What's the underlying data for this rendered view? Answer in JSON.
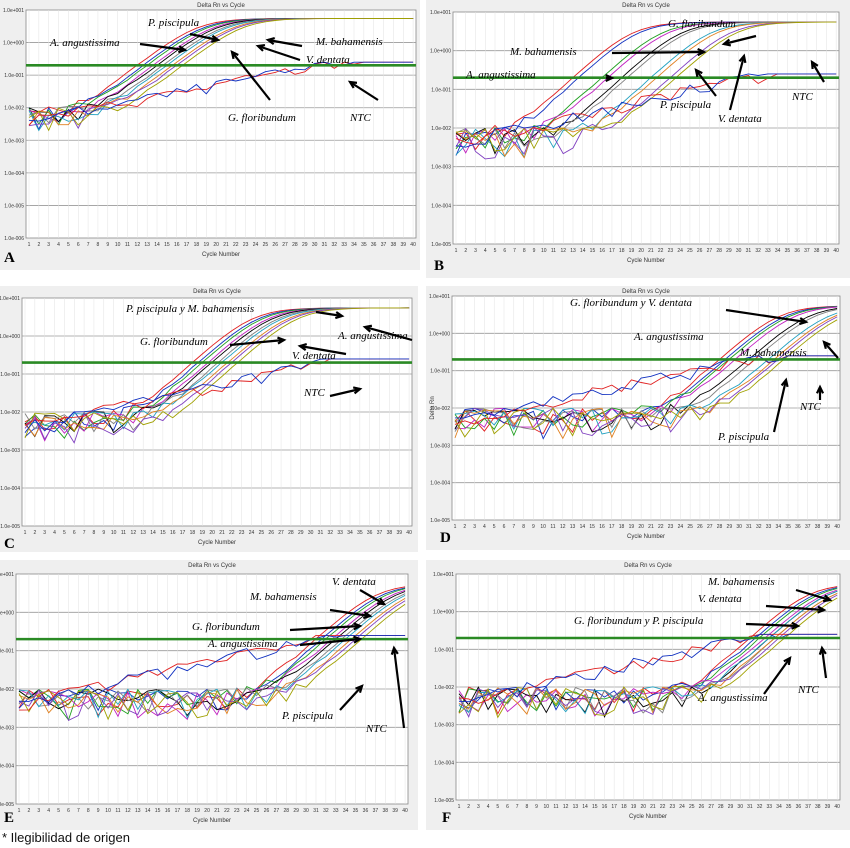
{
  "footnote": "* Ilegibilidad de origen",
  "colors": {
    "threshold": "#2a8a24",
    "panel_bg": "#efefef",
    "curves": [
      "#e02020",
      "#1030c0",
      "#20a020",
      "#c020c0",
      "#000000",
      "#808080",
      "#20a0c0",
      "#e08020",
      "#8040c0",
      "#a0a000"
    ]
  },
  "chart_data": [
    {
      "type": "line",
      "panel": "A",
      "title": "Delta Rn vs Cycle",
      "xlabel": "Cycle Number",
      "ylabel": "",
      "y_scale": "log",
      "yticks": [
        "1.0e+001",
        "1.0e+000",
        "1.0e-001",
        "1.0e-002",
        "1.0e-003",
        "1.0e-004",
        "1.0e-005",
        "1.0e-006"
      ],
      "ylim": [
        1e-06,
        10
      ],
      "x": [
        1,
        40
      ],
      "threshold": 0.2,
      "series": [
        {
          "name": "A. angustissima",
          "ct": 15
        },
        {
          "name": "P. piscipula",
          "ct": 16
        },
        {
          "name": "G. floribundum",
          "ct": 17
        },
        {
          "name": "M. bahamensis",
          "ct": 18
        },
        {
          "name": "V. dentata",
          "ct": 19
        },
        {
          "name": "NTC",
          "ct": null
        }
      ],
      "annotations": [
        "A. angustissima",
        "P. piscipula",
        "M. bahamensis",
        "V. dentata",
        "G. floribundum",
        "NTC"
      ]
    },
    {
      "type": "line",
      "panel": "B",
      "title": "Delta Rn vs Cycle",
      "xlabel": "Cycle Number",
      "ylabel": "",
      "y_scale": "log",
      "yticks": [
        "1.0e+001",
        "1.0e+000",
        "1.0e-001",
        "1.0e-002",
        "1.0e-003",
        "1.0e-004",
        "1.0e-005"
      ],
      "ylim": [
        1e-05,
        10
      ],
      "x": [
        1,
        40
      ],
      "threshold": 0.2,
      "series": [
        {
          "name": "A. angustissima",
          "ct": 16
        },
        {
          "name": "M. bahamensis",
          "ct": 19
        },
        {
          "name": "G. floribundum",
          "ct": 21
        },
        {
          "name": "P. piscipula",
          "ct": 24
        },
        {
          "name": "V. dentata",
          "ct": 26
        },
        {
          "name": "NTC",
          "ct": null
        }
      ],
      "annotations": [
        "G. floribundum",
        "M. bahamensis",
        "A. angustissima",
        "P. piscipula",
        "V. dentata",
        "NTC"
      ]
    },
    {
      "type": "line",
      "panel": "C",
      "title": "Delta Rn vs Cycle",
      "xlabel": "Cycle Number",
      "ylabel": "",
      "y_scale": "log",
      "yticks": [
        "1.0e+001",
        "1.0e+000",
        "1.0e-001",
        "1.0e-002",
        "1.0e-003",
        "1.0e-004",
        "1.0e-005"
      ],
      "ylim": [
        1e-05,
        10
      ],
      "x": [
        1,
        40
      ],
      "threshold": 0.2,
      "series": [
        {
          "name": "P. piscipula",
          "ct": 21
        },
        {
          "name": "M. bahamensis",
          "ct": 22
        },
        {
          "name": "G. floribundum",
          "ct": 23
        },
        {
          "name": "V. dentata",
          "ct": 24
        },
        {
          "name": "A. angustissima",
          "ct": 25
        },
        {
          "name": "NTC",
          "ct": null
        }
      ],
      "annotations": [
        "P. piscipula y M. bahamensis",
        "G. floribundum",
        "A. angustissima",
        "V. dentata",
        "NTC"
      ]
    },
    {
      "type": "line",
      "panel": "D",
      "title": "Delta Rn vs Cycle",
      "xlabel": "Cycle Number",
      "ylabel": "Delta Rn",
      "y_scale": "log",
      "yticks": [
        "1.0e+001",
        "1.0e+000",
        "1.0e-001",
        "1.0e-002",
        "1.0e-003",
        "1.0e-004",
        "1.0e-005"
      ],
      "ylim": [
        1e-05,
        10
      ],
      "x": [
        1,
        40
      ],
      "threshold": 0.2,
      "series": [
        {
          "name": "G. floribundum",
          "ct": 31
        },
        {
          "name": "V. dentata",
          "ct": 32
        },
        {
          "name": "A. angustissima",
          "ct": 34
        },
        {
          "name": "M. bahamensis",
          "ct": 36
        },
        {
          "name": "P. piscipula",
          "ct": 37
        },
        {
          "name": "NTC",
          "ct": null
        }
      ],
      "annotations": [
        "G. floribundum y V. dentata",
        "A. angustissima",
        "M. bahamensis",
        "NTC",
        "P. piscipula"
      ]
    },
    {
      "type": "line",
      "panel": "E",
      "title": "Delta Rn vs Cycle",
      "xlabel": "Cycle Number",
      "ylabel": "",
      "y_scale": "log",
      "yticks": [
        "1.0e+001",
        "1.0e+000",
        "1.0e-001",
        "1.0e-002",
        "1.0e-003",
        "1.0e-004",
        "1.0e-005"
      ],
      "ylim": [
        1e-05,
        10
      ],
      "x": [
        1,
        40
      ],
      "threshold": 0.2,
      "series": [
        {
          "name": "V. dentata",
          "ct": 34
        },
        {
          "name": "M. bahamensis",
          "ct": 35
        },
        {
          "name": "G. floribundum",
          "ct": 36
        },
        {
          "name": "A. angustissima",
          "ct": 37
        },
        {
          "name": "P. piscipula",
          "ct": 38
        },
        {
          "name": "NTC",
          "ct": null
        }
      ],
      "annotations": [
        "V. dentata",
        "M. bahamensis",
        "G. floribundum",
        "A. angustissima",
        "P. piscipula",
        "NTC"
      ]
    },
    {
      "type": "line",
      "panel": "F",
      "title": "Delta Rn vs Cycle",
      "xlabel": "Cycle Number",
      "ylabel": "",
      "y_scale": "log",
      "yticks": [
        "1.0e+001",
        "1.0e+000",
        "1.0e-001",
        "1.0e-002",
        "1.0e-003",
        "1.0e-004",
        "1.0e-005"
      ],
      "ylim": [
        1e-05,
        10
      ],
      "x": [
        1,
        40
      ],
      "threshold": 0.2,
      "series": [
        {
          "name": "M. bahamensis",
          "ct": 34
        },
        {
          "name": "V. dentata",
          "ct": 35
        },
        {
          "name": "G. floribundum",
          "ct": 36
        },
        {
          "name": "P. piscipula",
          "ct": 36
        },
        {
          "name": "A. angustissima",
          "ct": 37
        },
        {
          "name": "NTC",
          "ct": null
        }
      ],
      "annotations": [
        "M. bahamensis",
        "V. dentata",
        "G. floribundum y P. piscipula",
        "A. angustissima",
        "NTC"
      ]
    }
  ]
}
